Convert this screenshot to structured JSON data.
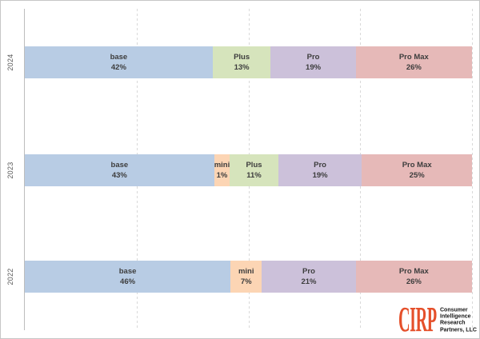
{
  "chart_data": {
    "type": "bar",
    "variant": "horizontal-100pct-stacked",
    "title": "",
    "unit_suffix": "%",
    "x_axis": {
      "min": 0,
      "max": 100,
      "gridlines_pct": [
        25,
        50,
        75,
        100
      ],
      "gridline_style": "dashed",
      "tick_labels_visible": false
    },
    "categories": [
      "2024",
      "2023",
      "2022"
    ],
    "segment_names": [
      "base",
      "mini",
      "Plus",
      "Pro",
      "Pro Max"
    ],
    "colors": {
      "base": "#b8cce4",
      "mini": "#fcd5b4",
      "Plus": "#d6e4bc",
      "Pro": "#ccc1da",
      "Pro Max": "#e6b9b8"
    },
    "rows": [
      {
        "year": "2024",
        "segments": [
          {
            "label": "base",
            "pct": 42
          },
          {
            "label": "Plus",
            "pct": 13
          },
          {
            "label": "Pro",
            "pct": 19
          },
          {
            "label": "Pro Max",
            "pct": 26
          }
        ]
      },
      {
        "year": "2023",
        "segments": [
          {
            "label": "base",
            "pct": 43
          },
          {
            "label": "mini",
            "pct": 1
          },
          {
            "label": "Plus",
            "pct": 11
          },
          {
            "label": "Pro",
            "pct": 19
          },
          {
            "label": "Pro Max",
            "pct": 25
          }
        ]
      },
      {
        "year": "2022",
        "segments": [
          {
            "label": "base",
            "pct": 46
          },
          {
            "label": "mini",
            "pct": 7
          },
          {
            "label": "Pro",
            "pct": 21
          },
          {
            "label": "Pro Max",
            "pct": 26
          }
        ]
      }
    ]
  },
  "logo": {
    "brand": "CIRP",
    "brand_color": "#e5502b",
    "lines": [
      "Consumer",
      "Intelligence",
      "Research",
      "Partners, LLC"
    ]
  }
}
